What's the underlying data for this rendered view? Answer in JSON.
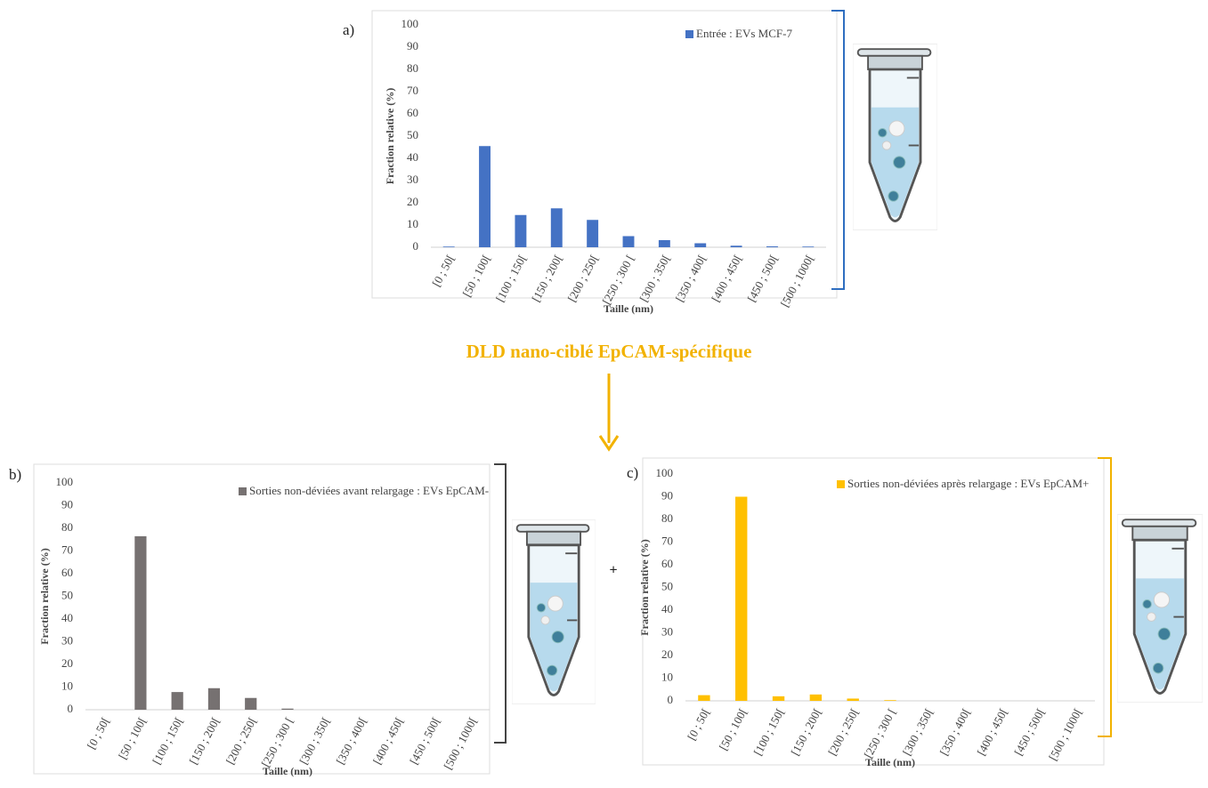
{
  "chart_data": [
    {
      "type": "bar",
      "label": "a)",
      "xlabel": "Taille (nm)",
      "ylabel": "Fraction relative  (%)",
      "categories": [
        "[0 ; 50[",
        "[50 ; 100[",
        "[100 ; 150[",
        "[150 ; 200[",
        "[200 ; 250[",
        "[250 ; 300 [",
        "[300 ; 350[",
        "[350 ; 400[",
        "[400 ; 450[",
        "[450 ; 500[",
        "[500 ; 1000["
      ],
      "series": [
        {
          "name": "Entrée : EVs MCF-7",
          "color": "#4472c4",
          "values": [
            0.3,
            45.5,
            14.5,
            17.5,
            12.3,
            5,
            3.2,
            1.8,
            0.7,
            0.4,
            0.3
          ]
        }
      ],
      "ylim": [
        0,
        100
      ],
      "yticks": [
        0,
        10,
        20,
        30,
        40,
        50,
        60,
        70,
        80,
        90,
        100
      ],
      "grid": false
    },
    {
      "type": "bar",
      "label": "b)",
      "xlabel": "Taille (nm)",
      "ylabel": "Fraction relative  (%)",
      "categories": [
        "[0 ; 50[",
        "[50 ; 100[",
        "[100 ; 150[",
        "[150 ; 200[",
        "[200 ; 250[",
        "[250 ; 300 [",
        "[300 ; 350[",
        "[350 ; 400[",
        "[400 ; 450[",
        "[450 ; 500[",
        "[500 ; 1000["
      ],
      "series": [
        {
          "name": "Sorties non-déviées avant relargage : EVs EpCAM-",
          "color": "#767171",
          "values": [
            0,
            76.5,
            7.8,
            9.5,
            5.2,
            0.5,
            0,
            0,
            0,
            0,
            0
          ]
        }
      ],
      "ylim": [
        0,
        100
      ],
      "yticks": [
        0,
        10,
        20,
        30,
        40,
        50,
        60,
        70,
        80,
        90,
        100
      ],
      "grid": false
    },
    {
      "type": "bar",
      "label": "c)",
      "xlabel": "Taille (nm)",
      "ylabel": "Fraction relative  (%)",
      "categories": [
        "[0 ; 50[",
        "[50 ; 100[",
        "[100 ; 150[",
        "[150 ; 200[",
        "[200 ; 250[",
        "[250 ; 300 [",
        "[300 ; 350[",
        "[350 ; 400[",
        "[400 ; 450[",
        "[450 ; 500[",
        "[500 ; 1000["
      ],
      "series": [
        {
          "name": "Sorties non-déviées après relargage : EVs EpCAM+",
          "color": "#ffc000",
          "values": [
            2.5,
            90,
            2,
            2.8,
            1,
            0.3,
            0,
            0,
            0,
            0,
            0
          ]
        }
      ],
      "ylim": [
        0,
        100
      ],
      "yticks": [
        0,
        10,
        20,
        30,
        40,
        50,
        60,
        70,
        80,
        90,
        100
      ],
      "grid": false
    }
  ],
  "caption": "DLD nano-ciblé EpCAM-spécifique",
  "plus": "+"
}
